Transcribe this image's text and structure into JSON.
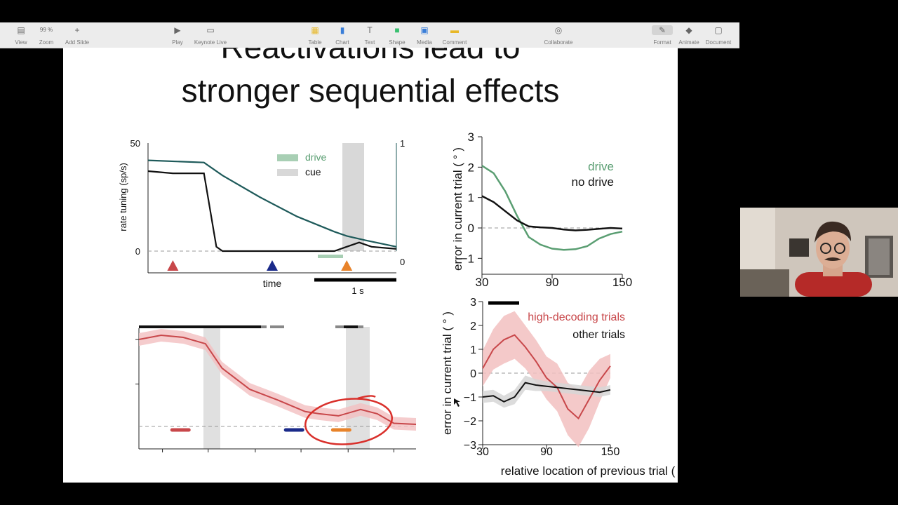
{
  "toolbar": {
    "items": [
      {
        "label": "View",
        "icon": "view-icon"
      },
      {
        "label": "Zoom",
        "icon": "zoom-icon",
        "value": "99 %"
      },
      {
        "label": "Add Slide",
        "icon": "add-slide-icon"
      },
      {
        "label": "Play",
        "icon": "play-icon"
      },
      {
        "label": "Keynote Live",
        "icon": "keynote-live-icon"
      },
      {
        "label": "Table",
        "icon": "table-icon"
      },
      {
        "label": "Chart",
        "icon": "chart-icon"
      },
      {
        "label": "Text",
        "icon": "text-icon"
      },
      {
        "label": "Shape",
        "icon": "shape-icon"
      },
      {
        "label": "Media",
        "icon": "media-icon"
      },
      {
        "label": "Comment",
        "icon": "comment-icon"
      },
      {
        "label": "Collaborate",
        "icon": "collaborate-icon"
      },
      {
        "label": "Format",
        "icon": "format-icon"
      },
      {
        "label": "Animate",
        "icon": "animate-icon"
      },
      {
        "label": "Document",
        "icon": "document-icon"
      }
    ]
  },
  "slide": {
    "title_line1": "Reactivations lead to",
    "title_line2": "stronger sequential effects",
    "colors": {
      "drive": "#5a9e72",
      "teal": "#1e5a5a",
      "red": "#c8474a",
      "navy": "#1a2a8a",
      "orange": "#e8832a",
      "cue": "#d8d8d8"
    }
  },
  "chart_data": [
    {
      "type": "line",
      "id": "rate-tuning",
      "ylabel": "rate tuning (sp/s)",
      "xlabel": "time",
      "left_ticks": [
        "50",
        "0"
      ],
      "right_ticks": [
        "1",
        "0"
      ],
      "legend": [
        {
          "label": "drive",
          "color": "#5a9e72"
        },
        {
          "label": "cue",
          "color": "#d8d8d8"
        }
      ],
      "scalebar_label": "1 s",
      "series": [
        {
          "name": "",
          "color": "#111111",
          "values": [
            [
              0,
              37
            ],
            [
              0.2,
              36
            ],
            [
              0.45,
              36
            ],
            [
              0.55,
              2
            ],
            [
              0.6,
              0
            ],
            [
              0.9,
              0
            ],
            [
              1.5,
              0
            ],
            [
              1.6,
              2
            ],
            [
              1.7,
              4
            ],
            [
              1.8,
              2
            ],
            [
              2.0,
              1
            ]
          ]
        },
        {
          "name": "",
          "color": "#1e5a5a",
          "values": [
            [
              0,
              42
            ],
            [
              0.45,
              41
            ],
            [
              0.6,
              35
            ],
            [
              0.9,
              25
            ],
            [
              1.2,
              16
            ],
            [
              1.5,
              9
            ],
            [
              1.6,
              7
            ],
            [
              1.75,
              5
            ],
            [
              2.0,
              2
            ]
          ]
        }
      ],
      "markers": [
        {
          "x": 0.2,
          "color": "#c8474a"
        },
        {
          "x": 1.0,
          "color": "#1a2a8a"
        },
        {
          "x": 1.6,
          "color": "#e8832a"
        }
      ]
    },
    {
      "type": "line",
      "id": "model-sequential",
      "ylabel": "error in current trial ( ° )",
      "x_ticks": [
        "30",
        "90",
        "150"
      ],
      "y_ticks": [
        "3",
        "2",
        "1",
        "0",
        "−1"
      ],
      "ylim": [
        -1.5,
        3
      ],
      "series": [
        {
          "name": "drive",
          "color": "#5a9e72",
          "x": [
            30,
            40,
            50,
            60,
            70,
            80,
            90,
            100,
            110,
            120,
            130,
            140,
            150
          ],
          "values": [
            2.05,
            1.8,
            1.2,
            0.4,
            -0.3,
            -0.55,
            -0.68,
            -0.72,
            -0.7,
            -0.6,
            -0.35,
            -0.2,
            -0.12
          ]
        },
        {
          "name": "no drive",
          "color": "#111111",
          "x": [
            30,
            40,
            50,
            60,
            70,
            80,
            90,
            100,
            110,
            120,
            130,
            140,
            150
          ],
          "values": [
            1.05,
            0.85,
            0.55,
            0.25,
            0.05,
            0.02,
            0,
            -0.05,
            -0.08,
            -0.06,
            -0.03,
            0,
            -0.02
          ]
        }
      ]
    },
    {
      "type": "line",
      "id": "decoding-time",
      "series": [
        {
          "name": "",
          "color": "#c8474a",
          "values": [
            [
              0,
              0.82
            ],
            [
              0.08,
              0.86
            ],
            [
              0.16,
              0.84
            ],
            [
              0.24,
              0.78
            ],
            [
              0.3,
              0.55
            ],
            [
              0.4,
              0.35
            ],
            [
              0.5,
              0.25
            ],
            [
              0.6,
              0.14
            ],
            [
              0.65,
              0.12
            ],
            [
              0.72,
              0.1
            ],
            [
              0.8,
              0.16
            ],
            [
              0.86,
              0.12
            ],
            [
              0.92,
              0.03
            ],
            [
              1.0,
              0.02
            ]
          ]
        }
      ],
      "markers": [
        {
          "x": 0.15,
          "color": "#c8474a"
        },
        {
          "x": 0.56,
          "color": "#1a2a8a"
        },
        {
          "x": 0.73,
          "color": "#e8832a"
        }
      ]
    },
    {
      "type": "line",
      "id": "data-sequential",
      "ylabel": "error in current trial ( ° )",
      "xlabel": "relative location of previous trial ( ° )",
      "x_ticks": [
        "30",
        "90",
        "150"
      ],
      "y_ticks": [
        "3",
        "2",
        "1",
        "0",
        "−1",
        "−2",
        "−3"
      ],
      "ylim": [
        -3,
        3
      ],
      "series": [
        {
          "name": "high-decoding trials",
          "color": "#c8474a",
          "x": [
            30,
            40,
            50,
            60,
            70,
            80,
            90,
            100,
            110,
            120,
            130,
            140,
            150
          ],
          "values": [
            0.2,
            1.0,
            1.4,
            1.6,
            1.1,
            0.5,
            -0.2,
            -0.6,
            -1.5,
            -1.9,
            -1.1,
            -0.3,
            0.3
          ]
        },
        {
          "name": "other trials",
          "color": "#111111",
          "x": [
            30,
            40,
            50,
            60,
            70,
            80,
            90,
            100,
            110,
            120,
            130,
            140,
            150
          ],
          "values": [
            -1.0,
            -0.95,
            -1.2,
            -1.0,
            -0.4,
            -0.5,
            -0.55,
            -0.6,
            -0.65,
            -0.7,
            -0.75,
            -0.8,
            -0.7
          ]
        }
      ]
    }
  ]
}
